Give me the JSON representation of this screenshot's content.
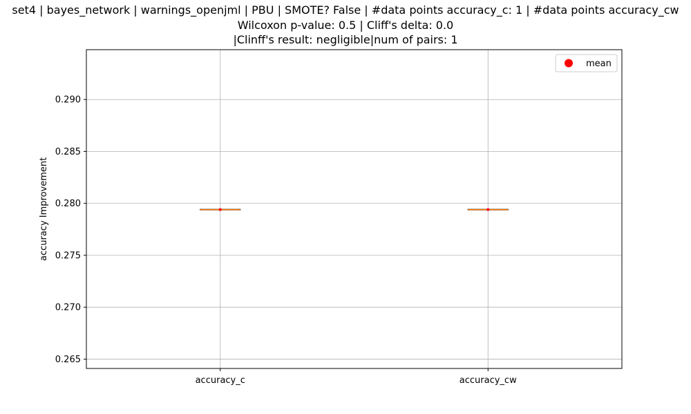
{
  "chart_data": {
    "type": "box",
    "title_lines": [
      "set4 | bayes_network | warnings_openjml | PBU | SMOTE? False | #data points accuracy_c: 1 | #data points accuracy_cw",
      "Wilcoxon p-value: 0.5 | Cliff's delta: 0.0",
      "|Clinff's result: negligible|num of pairs: 1"
    ],
    "xlabel": "",
    "ylabel": "accuracy Improvement",
    "categories": [
      "accuracy_c",
      "accuracy_cw"
    ],
    "series": [
      {
        "name": "accuracy_c",
        "median": 0.2794,
        "q1": 0.2794,
        "q3": 0.2794,
        "whisker_low": 0.2794,
        "whisker_high": 0.2794,
        "mean": 0.2794
      },
      {
        "name": "accuracy_cw",
        "median": 0.2794,
        "q1": 0.2794,
        "q3": 0.2794,
        "whisker_low": 0.2794,
        "whisker_high": 0.2794,
        "mean": 0.2794
      }
    ],
    "ylim": [
      0.2641,
      0.2948
    ],
    "yticks": [
      "0.265",
      "0.270",
      "0.275",
      "0.280",
      "0.285",
      "0.290"
    ],
    "grid": true,
    "legend": {
      "position": "top-right",
      "entries": [
        "mean"
      ]
    },
    "colors": {
      "mean": "#ff0000",
      "median": "#ff7f0e",
      "box": "#000000",
      "grid": "#b0b0b0"
    }
  }
}
